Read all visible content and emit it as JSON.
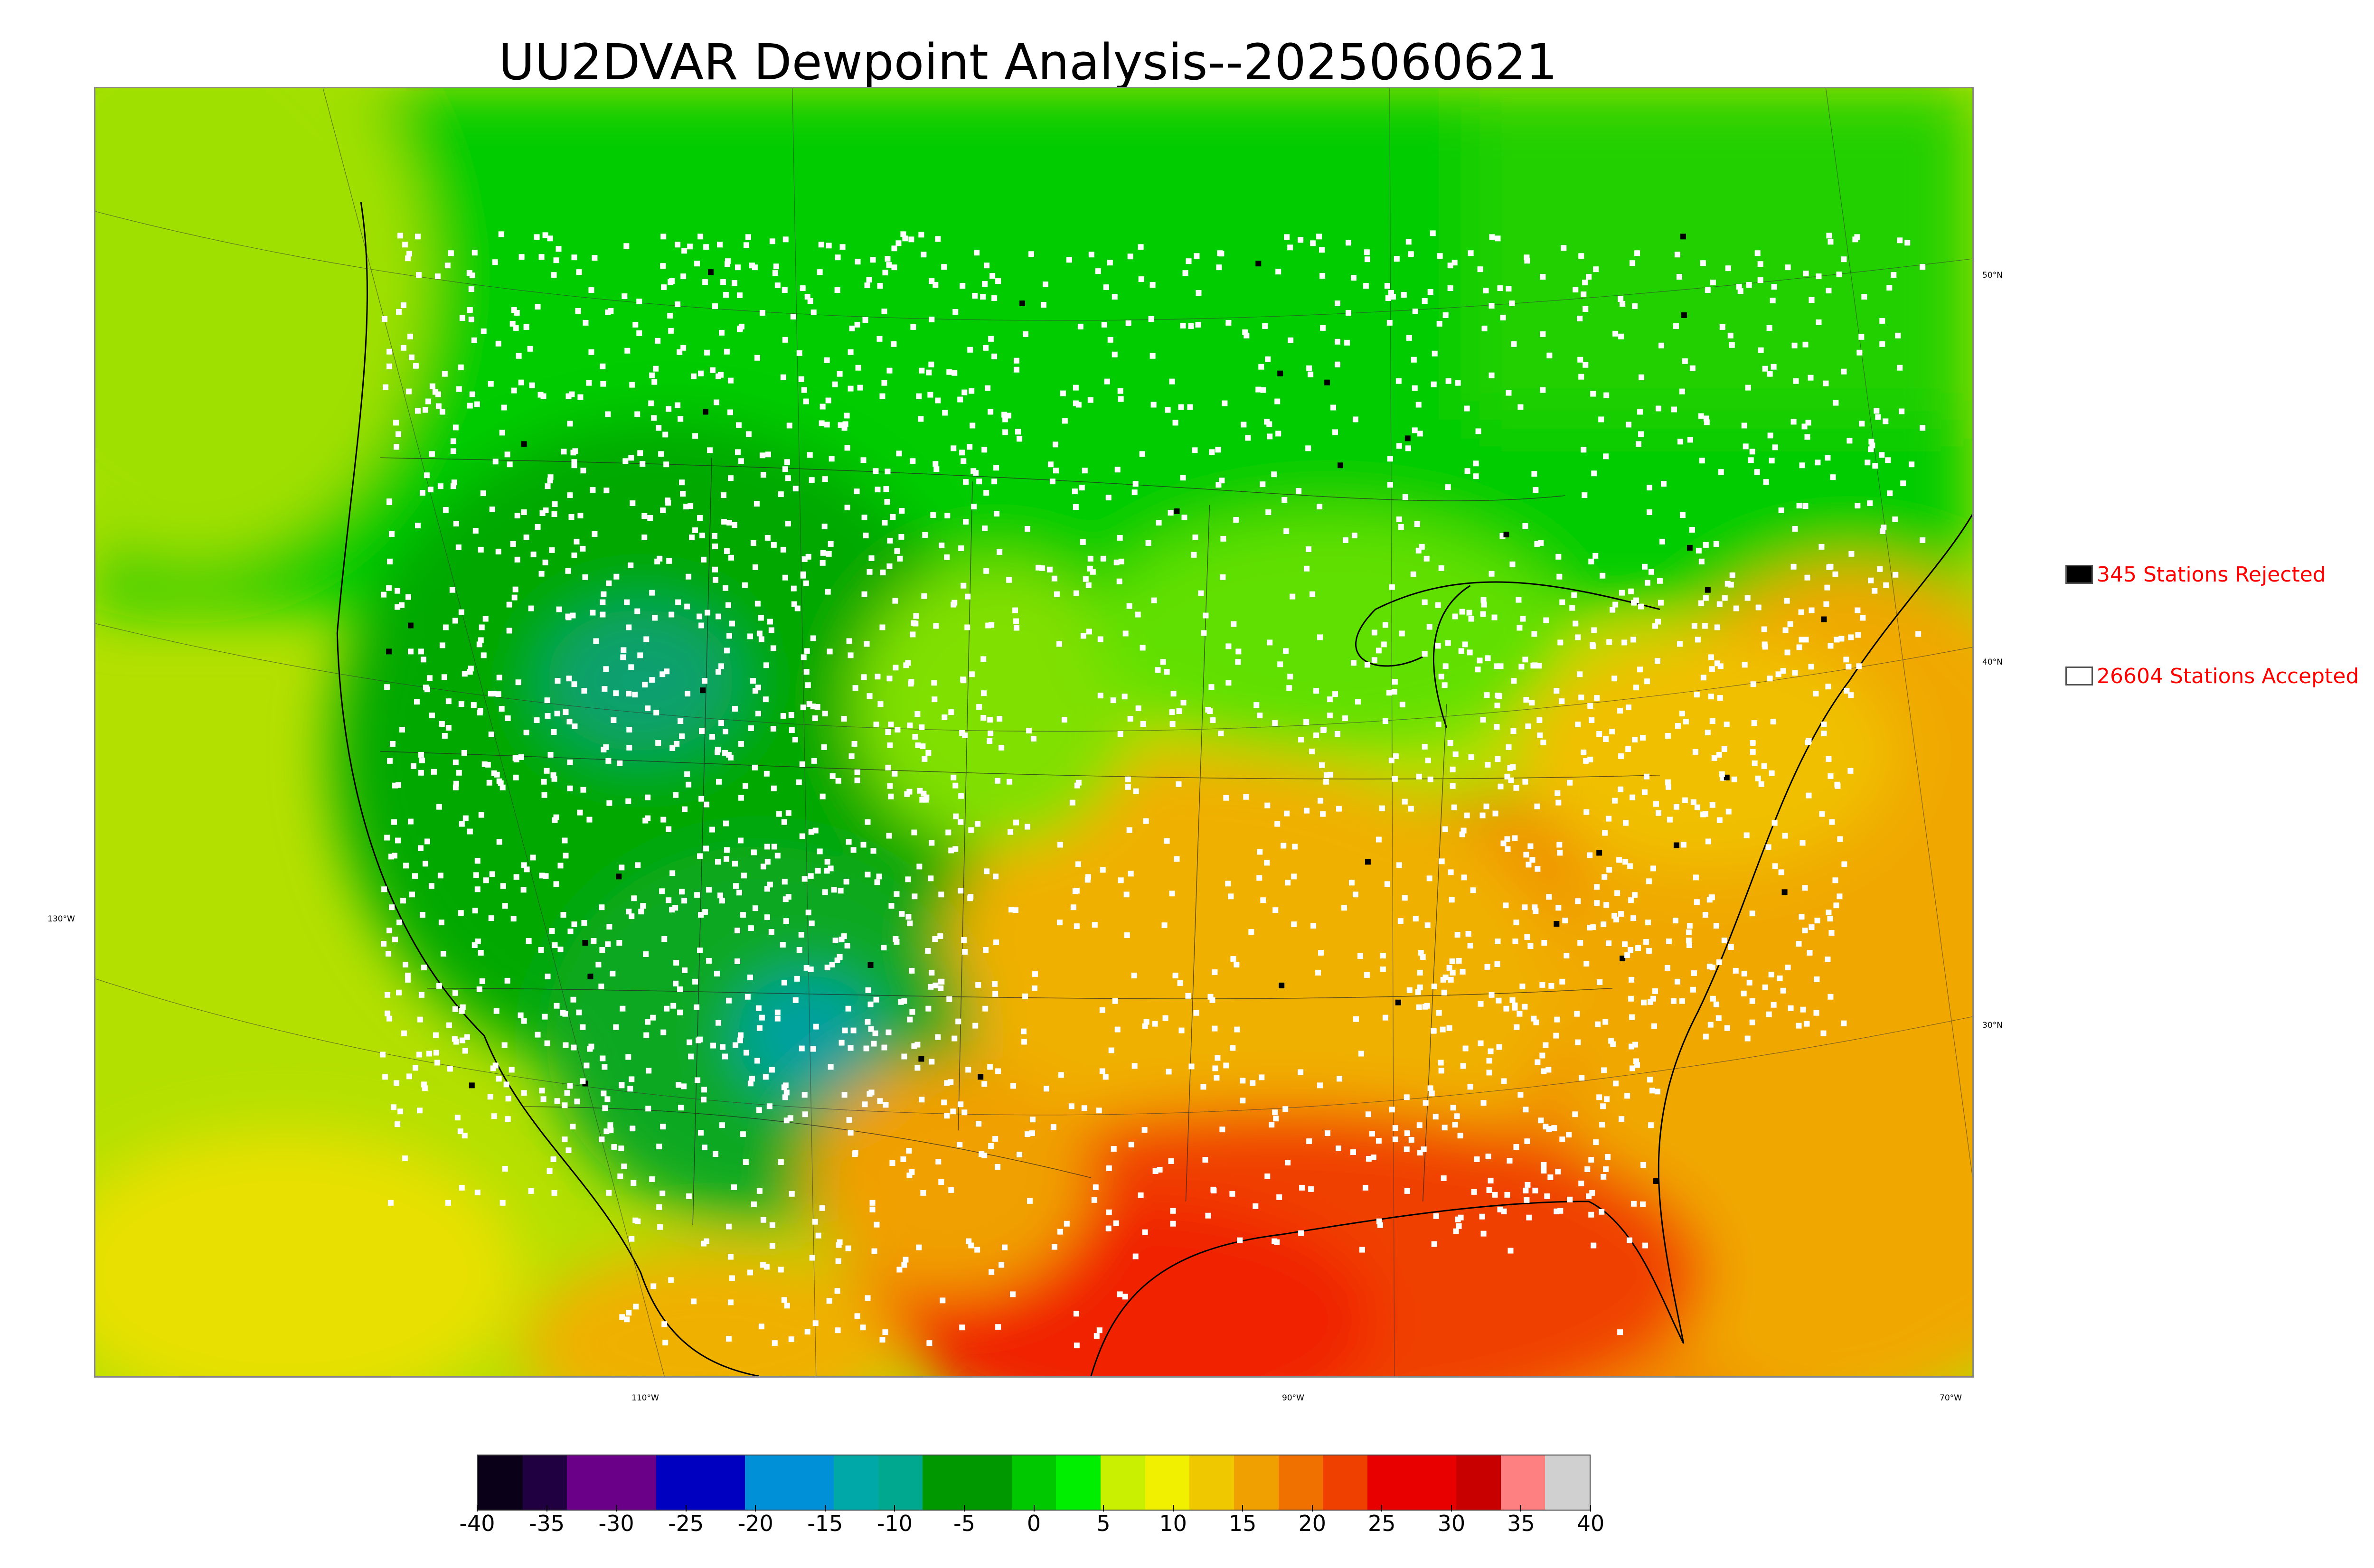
{
  "title": "UU2DVAR Dewpoint Analysis--2025060621",
  "legend": {
    "rejected": {
      "label": "345 Stations Rejected",
      "box_color": "#000000"
    },
    "accepted": {
      "label": "26604 Stations Accepted",
      "box_color": "#ffffff"
    }
  },
  "axes": {
    "longitudes": [
      "130°W",
      "110°W",
      "90°W",
      "70°W"
    ],
    "latitudes": [
      "50°N",
      "40°N",
      "30°N"
    ]
  },
  "colorbar": {
    "min": -40,
    "max": 40,
    "tick_labels": [
      "-40",
      "-35",
      "-30",
      "-25",
      "-20",
      "-15",
      "-10",
      "-5",
      "0",
      "5",
      "10",
      "15",
      "20",
      "25",
      "30",
      "35",
      "40"
    ],
    "colors": [
      "#0a0018",
      "#200040",
      "#6a0088",
      "#6a0088",
      "#0000c0",
      "#0000c0",
      "#0090d8",
      "#0090d8",
      "#00a8a8",
      "#00a890",
      "#009800",
      "#009800",
      "#00c800",
      "#00ee00",
      "#c8f000",
      "#f0f000",
      "#f0c800",
      "#f0a000",
      "#f07000",
      "#f04000",
      "#e80000",
      "#e80000",
      "#c80000",
      "#ff8080",
      "#d0d0d0"
    ]
  },
  "map_colors": {
    "ocean_west": "#b4e000",
    "ocean_east": "#f0b000",
    "gulf": "#f04000",
    "canada_north": "#00c000",
    "west_us": "#00a000",
    "rockies_dry": "#00a0a0",
    "plains": "#f0d000",
    "southeast": "#f0a000"
  }
}
